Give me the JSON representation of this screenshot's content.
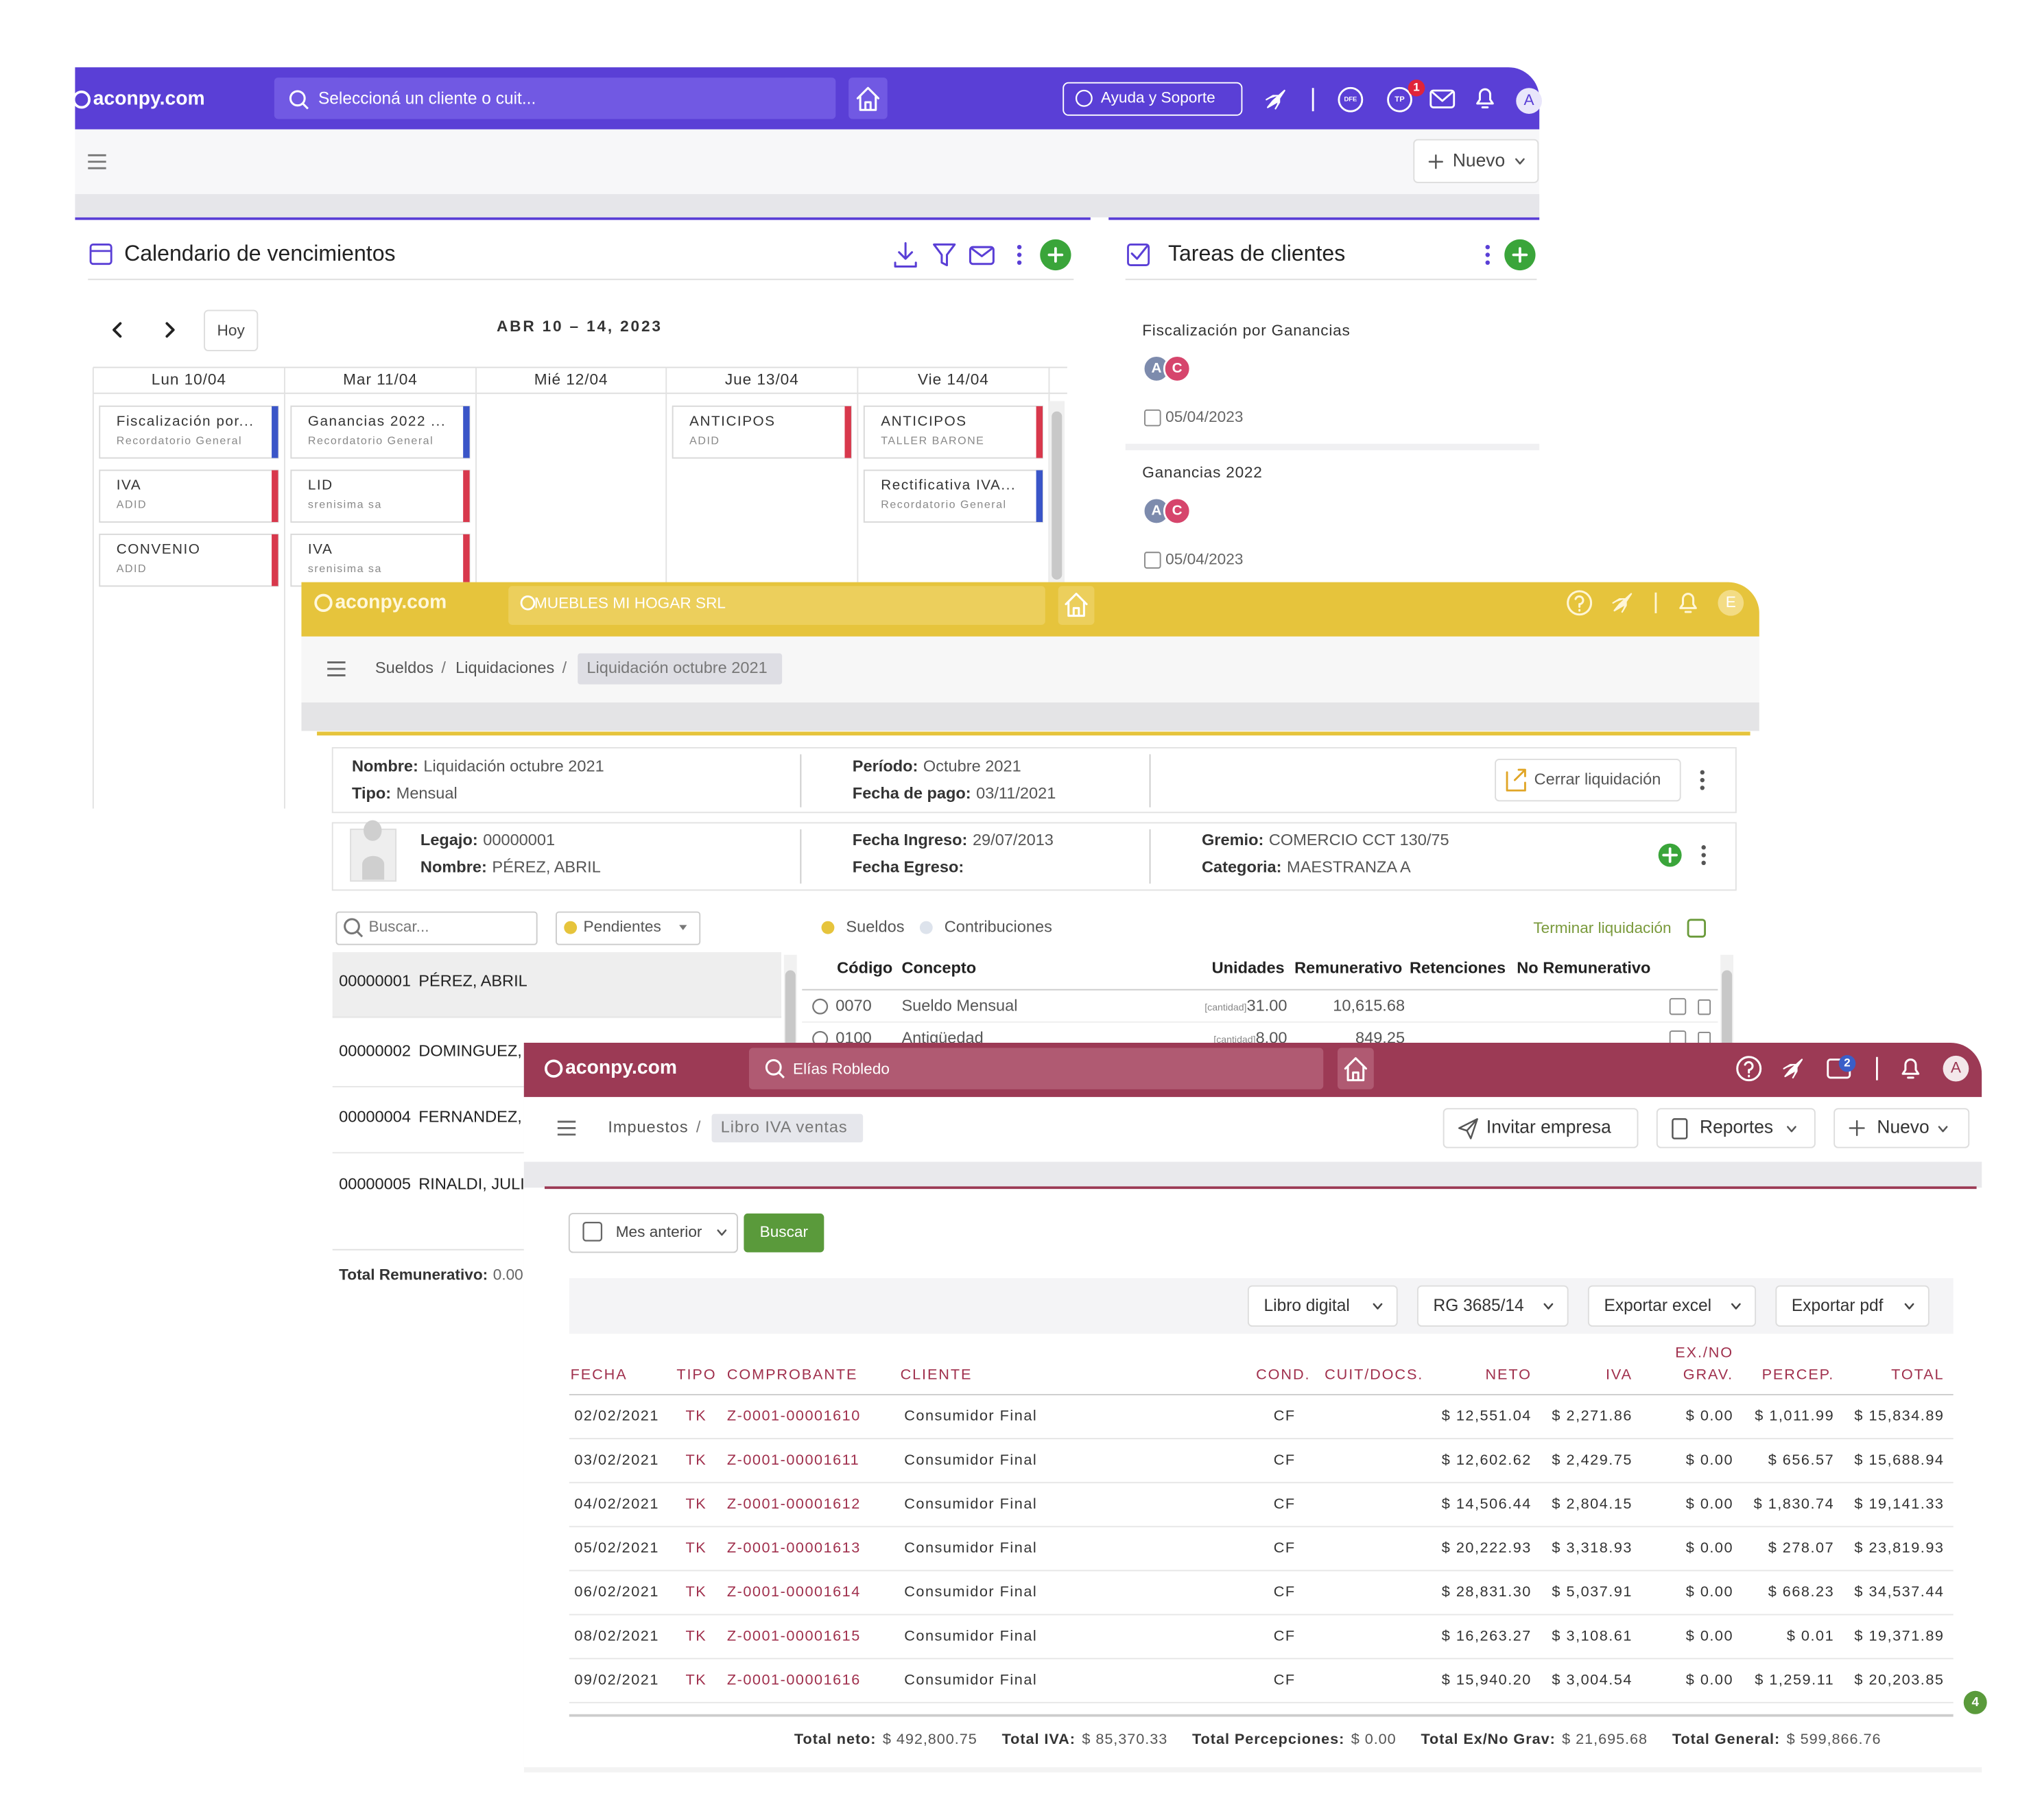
{
  "calendar_app": {
    "logo": "aconpy.com",
    "search_placeholder": "Seleccioná un cliente o cuit...",
    "help_button": "Ayuda y Soporte",
    "icon_labels": [
      "DFE",
      "TP"
    ],
    "notification_badge": "1",
    "avatar": "A",
    "new_button": "Nuevo",
    "calendar": {
      "title": "Calendario de vencimientos",
      "today_button": "Hoy",
      "range": "ABR 10 – 14, 2023",
      "days": [
        {
          "label": "Lun 10/04",
          "events": [
            {
              "title": "Fiscalización por...",
              "subtitle": "Recordatorio General",
              "color": "#3a55c8"
            },
            {
              "title": "IVA",
              "subtitle": "ADID",
              "color": "#d8384c"
            },
            {
              "title": "CONVENIO",
              "subtitle": "ADID",
              "color": "#d8384c"
            }
          ]
        },
        {
          "label": "Mar 11/04",
          "events": [
            {
              "title": "Ganancias 2022 ...",
              "subtitle": "Recordatorio General",
              "color": "#3a55c8"
            },
            {
              "title": "LID",
              "subtitle": "srenisima sa",
              "color": "#d8384c"
            },
            {
              "title": "IVA",
              "subtitle": "srenisima sa",
              "color": "#d8384c"
            }
          ]
        },
        {
          "label": "Mié 12/04",
          "events": []
        },
        {
          "label": "Jue 13/04",
          "events": [
            {
              "title": "ANTICIPOS",
              "subtitle": "ADID",
              "color": "#d8384c"
            }
          ]
        },
        {
          "label": "Vie 14/04",
          "events": [
            {
              "title": "ANTICIPOS",
              "subtitle": "TALLER BARONE",
              "color": "#d8384c"
            },
            {
              "title": "Rectificativa IVA...",
              "subtitle": "Recordatorio General",
              "color": "#3a55c8"
            }
          ]
        }
      ]
    },
    "tasks": {
      "title": "Tareas de clientes",
      "items": [
        {
          "title": "Fiscalización por Ganancias",
          "avatars": [
            "A",
            "C"
          ],
          "date": "05/04/2023"
        },
        {
          "title": "Ganancias 2022",
          "avatars": [
            "A",
            "C"
          ],
          "date": "05/04/2023"
        }
      ]
    }
  },
  "payroll_app": {
    "logo": "aconpy.com",
    "client": "MUEBLES MI HOGAR SRL",
    "avatar": "E",
    "breadcrumb": [
      "Sueldos",
      "Liquidaciones",
      "Liquidación octubre 2021"
    ],
    "summary": [
      {
        "label": "Nombre:",
        "value": "Liquidación octubre 2021"
      },
      {
        "label": "Tipo:",
        "value": "Mensual"
      },
      {
        "label": "Período:",
        "value": "Octubre 2021"
      },
      {
        "label": "Fecha de pago:",
        "value": "03/11/2021"
      }
    ],
    "close_button": "Cerrar liquidación",
    "employee": [
      {
        "label": "Legajo:",
        "value": "00000001"
      },
      {
        "label": "Nombre:",
        "value": "PÉREZ, ABRIL"
      },
      {
        "label": "Fecha Ingreso:",
        "value": "29/07/2013"
      },
      {
        "label": "Fecha Egreso:"
      },
      {
        "label": "Gremio:",
        "value": "COMERCIO CCT 130/75"
      },
      {
        "label": "Categoria:",
        "value": "MAESTRANZA A"
      }
    ],
    "search_placeholder": "Buscar...",
    "filter": "Pendientes",
    "legend": [
      "Sueldos",
      "Contribuciones"
    ],
    "finish_label": "Terminar liquidación",
    "employees": [
      {
        "id": "00000001",
        "name": "PÉREZ, ABRIL"
      },
      {
        "id": "00000002",
        "name": "DOMINGUEZ, JU"
      },
      {
        "id": "00000004",
        "name": "FERNANDEZ,"
      },
      {
        "id": "00000005",
        "name": "RINALDI, JULI"
      }
    ],
    "total": {
      "label": "Total Remunerativo:",
      "value": "0.00"
    },
    "concept_columns": [
      "Código",
      "Concepto",
      "Unidades",
      "Remunerativo",
      "Retenciones",
      "No Remunerativo"
    ],
    "concepts": [
      {
        "code": "0070",
        "concept": "Sueldo Mensual",
        "unit_tag": "[cantidad]",
        "units": "31.00",
        "remunerative": "10,615.68"
      },
      {
        "code": "0100",
        "concept": "Antigüedad",
        "unit_tag": "[cantidad]",
        "units": "8.00",
        "remunerative": "849.25"
      }
    ]
  },
  "vat_app": {
    "logo": "aconpy.com",
    "user": "Elías Robledo",
    "notification_badge": "2",
    "avatar": "A",
    "breadcrumb": [
      "Impuestos",
      "Libro IVA ventas"
    ],
    "actions": [
      "Invitar empresa",
      "Reportes",
      "Nuevo"
    ],
    "period": "Mes anterior",
    "search_button": "Buscar",
    "tools": [
      "Libro digital",
      "RG 3685/14",
      "Exportar excel",
      "Exportar pdf"
    ],
    "columns": [
      "FECHA",
      "TIPO",
      "COMPROBANTE",
      "CLIENTE",
      "COND.",
      "CUIT/DOCS.",
      "NETO",
      "IVA",
      [
        "EX./NO",
        "GRAV."
      ],
      "PERCEP.",
      "TOTAL"
    ],
    "rows": [
      [
        "02/02/2021",
        "TK",
        "Z-0001-00001610",
        "Consumidor Final",
        "CF",
        "$ 12,551.04",
        "$ 2,271.86",
        "$ 0.00",
        "$ 1,011.99",
        "$ 15,834.89"
      ],
      [
        "03/02/2021",
        "TK",
        "Z-0001-00001611",
        "Consumidor Final",
        "CF",
        "$ 12,602.62",
        "$ 2,429.75",
        "$ 0.00",
        "$ 656.57",
        "$ 15,688.94"
      ],
      [
        "04/02/2021",
        "TK",
        "Z-0001-00001612",
        "Consumidor Final",
        "CF",
        "$ 14,506.44",
        "$ 2,804.15",
        "$ 0.00",
        "$ 1,830.74",
        "$ 19,141.33"
      ],
      [
        "05/02/2021",
        "TK",
        "Z-0001-00001613",
        "Consumidor Final",
        "CF",
        "$ 20,222.93",
        "$ 3,318.93",
        "$ 0.00",
        "$ 278.07",
        "$ 23,819.93"
      ],
      [
        "06/02/2021",
        "TK",
        "Z-0001-00001614",
        "Consumidor Final",
        "CF",
        "$ 28,831.30",
        "$ 5,037.91",
        "$ 0.00",
        "$ 668.23",
        "$ 34,537.44"
      ],
      [
        "08/02/2021",
        "TK",
        "Z-0001-00001615",
        "Consumidor Final",
        "CF",
        "$ 16,263.27",
        "$ 3,108.61",
        "$ 0.00",
        "$ 0.01",
        "$ 19,371.89"
      ],
      [
        "09/02/2021",
        "TK",
        "Z-0001-00001616",
        "Consumidor Final",
        "CF",
        "$ 15,940.20",
        "$ 3,004.54",
        "$ 0.00",
        "$ 1,259.11",
        "$ 20,203.85"
      ]
    ],
    "totals": [
      {
        "label": "Total neto:",
        "value": "$ 492,800.75"
      },
      {
        "label": "Total IVA:",
        "value": "$ 85,370.33"
      },
      {
        "label": "Total Percepciones:",
        "value": "$ 0.00"
      },
      {
        "label": "Total Ex/No Grav:",
        "value": "$ 21,695.68"
      },
      {
        "label": "Total General:",
        "value": "$ 599,866.76"
      }
    ],
    "corner_badge": "4"
  }
}
